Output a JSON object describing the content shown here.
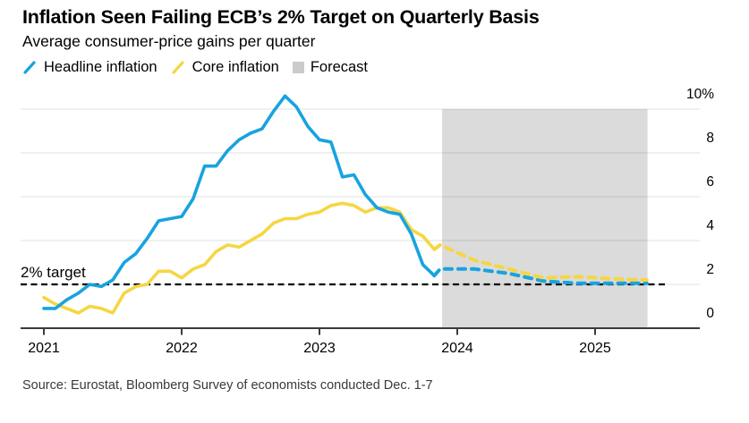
{
  "header": {
    "title": "Inflation Seen Failing ECB’s 2% Target on Quarterly Basis",
    "subtitle": "Average consumer-price gains per quarter"
  },
  "legend": {
    "items": [
      {
        "label": "Headline inflation",
        "swatch": "blue-slash"
      },
      {
        "label": "Core inflation",
        "swatch": "yellow-slash"
      },
      {
        "label": "Forecast",
        "swatch": "gray-square"
      }
    ]
  },
  "colors": {
    "headline": "#18A3DF",
    "core": "#F6D642",
    "forecast_band": "#DBDBDB",
    "legend_square": "#CBCBCB",
    "target_line": "#000000",
    "axis_line": "#3B3B3B"
  },
  "source": "Source: Eurostat, Bloomberg Survey of economists conducted Dec. 1-7",
  "chart_data": {
    "type": "line",
    "title": "Inflation Seen Failing ECB’s 2% Target on Quarterly Basis",
    "subtitle": "Average consumer-price gains per quarter",
    "y_axis": {
      "range": [
        0,
        10
      ],
      "ticks": [
        0,
        2,
        4,
        6,
        8,
        10
      ],
      "tick_labels": [
        "0",
        "2",
        "4",
        "6",
        "8",
        "10%"
      ],
      "side": "right",
      "grid": true
    },
    "x_axis": {
      "ticks": [
        2021,
        2022,
        2023,
        2024,
        2025
      ],
      "tick_labels": [
        "2021",
        "2022",
        "2023",
        "2024",
        "2025"
      ]
    },
    "target_line": {
      "value": 2,
      "label": "2% target"
    },
    "forecast_band": {
      "label": "Forecast",
      "start_year": 2023.89,
      "end_year": 2025.38
    },
    "series": [
      {
        "name": "Headline inflation",
        "style": "solid",
        "color_key": "headline",
        "months": [
          "2021-01",
          "2021-02",
          "2021-03",
          "2021-04",
          "2021-05",
          "2021-06",
          "2021-07",
          "2021-08",
          "2021-09",
          "2021-10",
          "2021-11",
          "2021-12",
          "2022-01",
          "2022-02",
          "2022-03",
          "2022-04",
          "2022-05",
          "2022-06",
          "2022-07",
          "2022-08",
          "2022-09",
          "2022-10",
          "2022-11",
          "2022-12",
          "2023-01",
          "2023-02",
          "2023-03",
          "2023-04",
          "2023-05",
          "2023-06",
          "2023-07",
          "2023-08",
          "2023-09",
          "2023-10",
          "2023-11"
        ],
        "values": [
          0.9,
          0.9,
          1.3,
          1.6,
          2.0,
          1.9,
          2.2,
          3.0,
          3.4,
          4.1,
          4.9,
          5.0,
          5.1,
          5.9,
          7.4,
          7.4,
          8.1,
          8.6,
          8.9,
          9.1,
          9.9,
          10.6,
          10.1,
          9.2,
          8.6,
          8.5,
          6.9,
          7.0,
          6.1,
          5.5,
          5.3,
          5.2,
          4.3,
          2.9,
          2.4
        ]
      },
      {
        "name": "Headline inflation forecast",
        "style": "dashed",
        "color_key": "headline",
        "quarters": [
          "2023 Q4",
          "2024 Q1",
          "2024 Q2",
          "2024 Q3",
          "2024 Q4",
          "2025 Q1",
          "2025 Q2"
        ],
        "values": [
          2.7,
          2.7,
          2.5,
          2.15,
          2.05,
          2.05,
          2.05
        ]
      },
      {
        "name": "Core inflation",
        "style": "solid",
        "color_key": "core",
        "months": [
          "2021-01",
          "2021-02",
          "2021-03",
          "2021-04",
          "2021-05",
          "2021-06",
          "2021-07",
          "2021-08",
          "2021-09",
          "2021-10",
          "2021-11",
          "2021-12",
          "2022-01",
          "2022-02",
          "2022-03",
          "2022-04",
          "2022-05",
          "2022-06",
          "2022-07",
          "2022-08",
          "2022-09",
          "2022-10",
          "2022-11",
          "2022-12",
          "2023-01",
          "2023-02",
          "2023-03",
          "2023-04",
          "2023-05",
          "2023-06",
          "2023-07",
          "2023-08",
          "2023-09",
          "2023-10",
          "2023-11"
        ],
        "values": [
          1.4,
          1.1,
          0.9,
          0.7,
          1.0,
          0.9,
          0.7,
          1.6,
          1.9,
          2.0,
          2.6,
          2.6,
          2.3,
          2.7,
          2.9,
          3.5,
          3.8,
          3.7,
          4.0,
          4.3,
          4.8,
          5.0,
          5.0,
          5.2,
          5.3,
          5.6,
          5.7,
          5.6,
          5.3,
          5.5,
          5.5,
          5.3,
          4.5,
          4.2,
          3.6
        ]
      },
      {
        "name": "Core inflation forecast",
        "style": "dashed",
        "color_key": "core",
        "quarters": [
          "2023 Q4",
          "2024 Q1",
          "2024 Q2",
          "2024 Q3",
          "2024 Q4",
          "2025 Q1",
          "2025 Q2"
        ],
        "values": [
          3.8,
          3.1,
          2.7,
          2.3,
          2.35,
          2.25,
          2.2
        ]
      }
    ]
  }
}
